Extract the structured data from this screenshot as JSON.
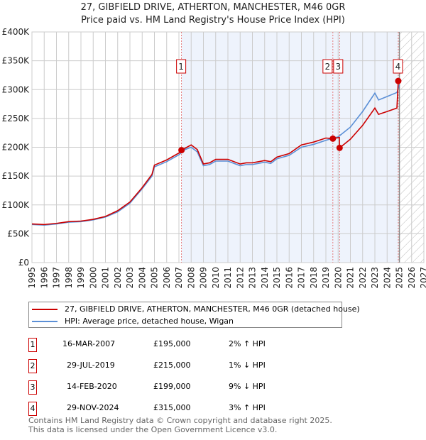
{
  "header": {
    "title": "27, GIBFIELD DRIVE, ATHERTON, MANCHESTER, M46 0GR",
    "subtitle": "Price paid vs. HM Land Registry's House Price Index (HPI)"
  },
  "chart_data": {
    "type": "line",
    "xlim": [
      1995,
      2027
    ],
    "ylim": [
      0,
      400000
    ],
    "x_ticks": [
      "1995",
      "1996",
      "1997",
      "1998",
      "1999",
      "2000",
      "2001",
      "2002",
      "2003",
      "2004",
      "2005",
      "2006",
      "2007",
      "2008",
      "2009",
      "2010",
      "2011",
      "2012",
      "2013",
      "2014",
      "2015",
      "2016",
      "2017",
      "2018",
      "2019",
      "2020",
      "2021",
      "2022",
      "2023",
      "2024",
      "2025",
      "2026",
      "2027"
    ],
    "y_ticks": [
      {
        "v": 0,
        "label": "£0"
      },
      {
        "v": 50000,
        "label": "£50K"
      },
      {
        "v": 100000,
        "label": "£100K"
      },
      {
        "v": 150000,
        "label": "£150K"
      },
      {
        "v": 200000,
        "label": "£200K"
      },
      {
        "v": 250000,
        "label": "£250K"
      },
      {
        "v": 300000,
        "label": "£300K"
      },
      {
        "v": 350000,
        "label": "£350K"
      },
      {
        "v": 400000,
        "label": "£400K"
      }
    ],
    "grid": true,
    "shaded_range": [
      2007.21,
      2024.91
    ],
    "forecast_hatch_from": 2025.0,
    "series": [
      {
        "name": "27, GIBFIELD DRIVE, ATHERTON, MANCHESTER, M46 0GR (detached house)",
        "color": "#cc0000",
        "x": [
          1995,
          1996,
          1997,
          1998,
          1999,
          2000,
          2001,
          2002,
          2003,
          2004,
          2004.8,
          2005,
          2006,
          2007,
          2007.21,
          2008,
          2008.5,
          2009,
          2009.5,
          2010,
          2011,
          2012,
          2012.5,
          2013,
          2014,
          2014.5,
          2015,
          2016,
          2017,
          2018,
          2019,
          2019.57,
          2020.1,
          2020.12,
          2021,
          2022,
          2022.5,
          2023,
          2023.3,
          2024,
          2024.8,
          2024.91,
          2025
        ],
        "y": [
          67000,
          66000,
          68000,
          71000,
          72000,
          75000,
          80000,
          90000,
          105000,
          130000,
          153000,
          169000,
          178000,
          190000,
          195000,
          204000,
          196000,
          171000,
          173000,
          179000,
          179000,
          171000,
          173000,
          173000,
          177000,
          175000,
          183000,
          189000,
          204000,
          209000,
          216000,
          215000,
          217000,
          199000,
          214000,
          238000,
          253000,
          268000,
          257000,
          262000,
          268000,
          315000,
          312000
        ]
      },
      {
        "name": "HPI: Average price, detached house, Wigan",
        "color": "#5b8fd6",
        "x": [
          1995,
          1996,
          1997,
          1998,
          1999,
          2000,
          2001,
          2002,
          2003,
          2004,
          2004.8,
          2005,
          2006,
          2007,
          2007.5,
          2008,
          2008.5,
          2009,
          2009.5,
          2010,
          2011,
          2012,
          2012.5,
          2013,
          2014,
          2014.5,
          2015,
          2016,
          2017,
          2018,
          2019,
          2019.6,
          2020,
          2021,
          2022,
          2022.5,
          2023,
          2023.3,
          2024,
          2024.8,
          2025
        ],
        "y": [
          66000,
          65000,
          67000,
          70000,
          71000,
          74000,
          79000,
          88000,
          103000,
          128000,
          150000,
          166000,
          175000,
          187000,
          196000,
          200000,
          192000,
          168000,
          170000,
          176000,
          176000,
          168000,
          170000,
          170000,
          174000,
          172000,
          180000,
          186000,
          200000,
          205000,
          212000,
          216000,
          218000,
          235000,
          262000,
          278000,
          294000,
          282000,
          288000,
          295000,
          308000
        ]
      }
    ],
    "sales": [
      {
        "n": "1",
        "date": "16-MAR-2007",
        "price": "£195,000",
        "x": 2007.21,
        "y": 195000,
        "hpi": "2% ↑ HPI"
      },
      {
        "n": "2",
        "date": "29-JUL-2019",
        "price": "£215,000",
        "x": 2019.57,
        "y": 215000,
        "hpi": "1% ↓ HPI"
      },
      {
        "n": "3",
        "date": "14-FEB-2020",
        "price": "£199,000",
        "x": 2020.12,
        "y": 199000,
        "hpi": "9% ↓ HPI"
      },
      {
        "n": "4",
        "date": "29-NOV-2024",
        "price": "£315,000",
        "x": 2024.91,
        "y": 315000,
        "hpi": "3% ↑ HPI"
      }
    ]
  },
  "footer": {
    "line1": "Contains HM Land Registry data © Crown copyright and database right 2025.",
    "line2": "This data is licensed under the Open Government Licence v3.0."
  }
}
